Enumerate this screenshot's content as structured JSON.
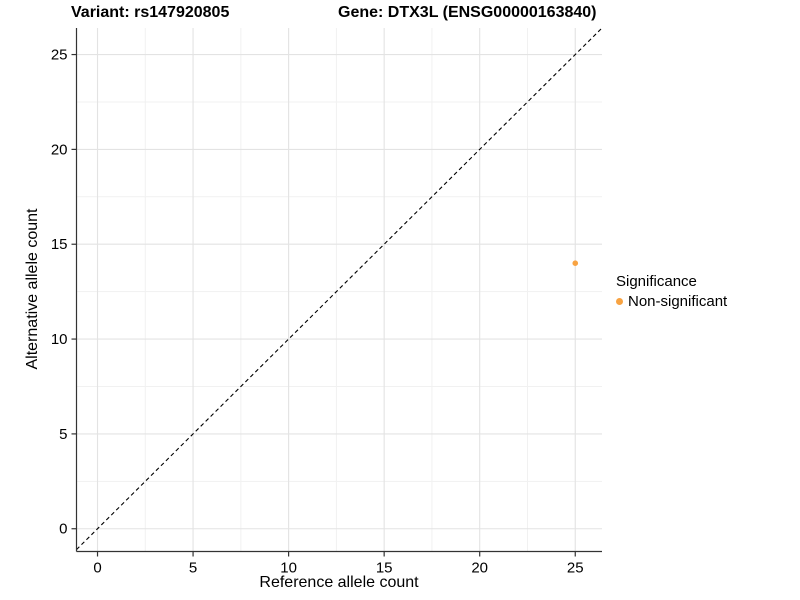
{
  "header": {
    "title_left": "Variant: rs147920805",
    "title_right": "Gene: DTX3L (ENSG00000163840)"
  },
  "chart_data": {
    "type": "scatter",
    "title": "Variant: rs147920805 | Gene: DTX3L (ENSG00000163840)",
    "xlabel": "Reference allele count",
    "ylabel": "Alternative allele count",
    "xlim": [
      -1.1,
      26.4
    ],
    "ylim": [
      -1.2,
      26.4
    ],
    "xticks": [
      0,
      5,
      10,
      15,
      20,
      25
    ],
    "yticks": [
      0,
      5,
      10,
      15,
      20,
      25
    ],
    "grid": "major+minor",
    "minor_interval": 2.5,
    "points": [
      {
        "x": 25,
        "y": 14,
        "series": "Non-significant"
      }
    ],
    "identity_line": {
      "slope": 1,
      "intercept": 0,
      "style": "dashed",
      "color": "#000000"
    },
    "legend": {
      "position": "right",
      "title": "Significance",
      "entries": [
        {
          "label": "Non-significant",
          "color": "#F8A342"
        }
      ]
    },
    "colors": {
      "point": "#F8A342",
      "grid_major": "#E3E3E3",
      "grid_minor": "#F1F1F1",
      "axis": "#333333",
      "text": "#000000",
      "background": "#FFFFFF"
    }
  }
}
